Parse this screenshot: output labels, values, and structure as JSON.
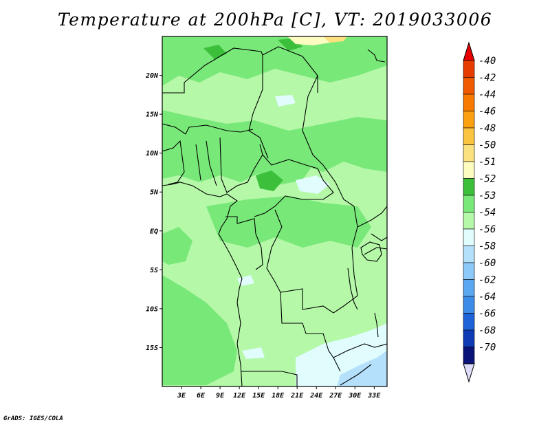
{
  "title": "Temperature at 200hPa [C], VT: 2019033006",
  "credit": "GrADS: IGES/COLA",
  "map": {
    "lon_range": [
      0,
      35
    ],
    "lat_range": [
      -20,
      25
    ],
    "lat_ticks": [
      {
        "value": 20,
        "label": "20N"
      },
      {
        "value": 15,
        "label": "15N"
      },
      {
        "value": 10,
        "label": "10N"
      },
      {
        "value": 5,
        "label": "5N"
      },
      {
        "value": 0,
        "label": "EQ"
      },
      {
        "value": -5,
        "label": "5S"
      },
      {
        "value": -10,
        "label": "10S"
      },
      {
        "value": -15,
        "label": "15S"
      }
    ],
    "lon_ticks": [
      {
        "value": 3,
        "label": "3E"
      },
      {
        "value": 6,
        "label": "6E"
      },
      {
        "value": 9,
        "label": "9E"
      },
      {
        "value": 12,
        "label": "12E"
      },
      {
        "value": 15,
        "label": "15E"
      },
      {
        "value": 18,
        "label": "18E"
      },
      {
        "value": 21,
        "label": "21E"
      },
      {
        "value": 24,
        "label": "24E"
      },
      {
        "value": 27,
        "label": "27E"
      },
      {
        "value": 30,
        "label": "30E"
      },
      {
        "value": 33,
        "label": "33E"
      }
    ]
  },
  "colorbar": [
    {
      "label": "-40",
      "color": "#e63c00"
    },
    {
      "label": "-42",
      "color": "#f05a00"
    },
    {
      "label": "-44",
      "color": "#f87a00"
    },
    {
      "label": "-46",
      "color": "#fba010"
    },
    {
      "label": "-48",
      "color": "#fbc440"
    },
    {
      "label": "-50",
      "color": "#fbe180"
    },
    {
      "label": "-51",
      "color": "#fcfcc0"
    },
    {
      "label": "-52",
      "color": "#3cc03c"
    },
    {
      "label": "-53",
      "color": "#78e878"
    },
    {
      "label": "-54",
      "color": "#b4f8a8"
    },
    {
      "label": "-56",
      "color": "#e0fcfc"
    },
    {
      "label": "-58",
      "color": "#b4e0fc"
    },
    {
      "label": "-60",
      "color": "#8cc8f8"
    },
    {
      "label": "-62",
      "color": "#5ca8f0"
    },
    {
      "label": "-64",
      "color": "#3c8ce8"
    },
    {
      "label": "-66",
      "color": "#1e64d8"
    },
    {
      "label": "-68",
      "color": "#0f3cb4"
    },
    {
      "label": "-70",
      "color": "#0a1478"
    }
  ],
  "colorbar_ends": {
    "top": "#e60000",
    "bottom": "#dcdcf8"
  }
}
